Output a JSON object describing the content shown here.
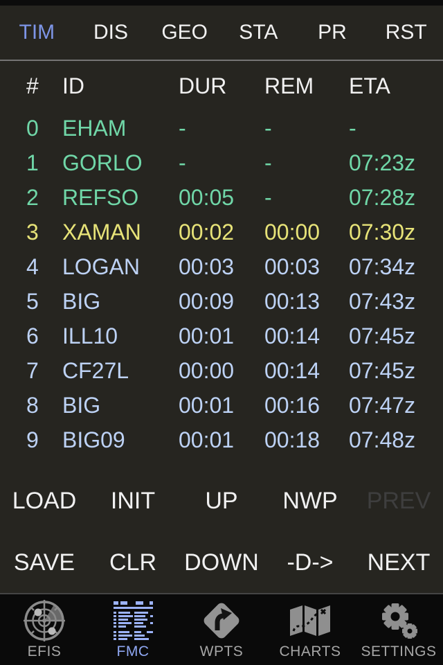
{
  "colors": {
    "bg": "#262520",
    "white": "#f1f1f1",
    "accent": "#7d95e6",
    "green": "#70d7a8",
    "yellow": "#e7e378",
    "blue_row": "#bdd2f5",
    "disabled": "#3e3e3e",
    "divider": "#757575",
    "tabbar_bg": "#0a0a0a",
    "tabbar_border": "#454545",
    "icon_gray": "#8f8f8f",
    "label_gray": "#a6a6a6",
    "fmc_blue": "#8fa7f2",
    "fmc_icon_blue": "#9cb2f8"
  },
  "top_tabs": {
    "items": [
      {
        "label": "TIM",
        "active": true
      },
      {
        "label": "DIS",
        "active": false
      },
      {
        "label": "GEO",
        "active": false
      },
      {
        "label": "STA",
        "active": false
      },
      {
        "label": "PR",
        "active": false
      },
      {
        "label": "RST",
        "active": false
      }
    ]
  },
  "table": {
    "headers": [
      "#",
      "ID",
      "DUR",
      "REM",
      "ETA"
    ],
    "rows": [
      {
        "num": "0",
        "id": "EHAM",
        "dur": "-",
        "rem": "-",
        "eta": "-",
        "color": "green"
      },
      {
        "num": "1",
        "id": "GORLO",
        "dur": "-",
        "rem": "-",
        "eta": "07:23z",
        "color": "green"
      },
      {
        "num": "2",
        "id": "REFSO",
        "dur": "00:05",
        "rem": "-",
        "eta": "07:28z",
        "color": "green"
      },
      {
        "num": "3",
        "id": "XAMAN",
        "dur": "00:02",
        "rem": "00:00",
        "eta": "07:30z",
        "color": "yellow"
      },
      {
        "num": "4",
        "id": "LOGAN",
        "dur": "00:03",
        "rem": "00:03",
        "eta": "07:34z",
        "color": "blue"
      },
      {
        "num": "5",
        "id": "BIG",
        "dur": "00:09",
        "rem": "00:13",
        "eta": "07:43z",
        "color": "blue"
      },
      {
        "num": "6",
        "id": "ILL10",
        "dur": "00:01",
        "rem": "00:14",
        "eta": "07:45z",
        "color": "blue"
      },
      {
        "num": "7",
        "id": "CF27L",
        "dur": "00:00",
        "rem": "00:14",
        "eta": "07:45z",
        "color": "blue"
      },
      {
        "num": "8",
        "id": "BIG",
        "dur": "00:01",
        "rem": "00:16",
        "eta": "07:47z",
        "color": "blue"
      },
      {
        "num": "9",
        "id": "BIG09",
        "dur": "00:01",
        "rem": "00:18",
        "eta": "07:48z",
        "color": "blue"
      }
    ]
  },
  "buttons": {
    "row1": [
      {
        "label": "LOAD",
        "name": "load-button",
        "disabled": false
      },
      {
        "label": "INIT",
        "name": "init-button",
        "disabled": false
      },
      {
        "label": "UP",
        "name": "up-button",
        "disabled": false
      },
      {
        "label": "NWP",
        "name": "nwp-button",
        "disabled": false
      },
      {
        "label": "PREV",
        "name": "prev-button",
        "disabled": true
      }
    ],
    "row2": [
      {
        "label": "SAVE",
        "name": "save-button",
        "disabled": false
      },
      {
        "label": "CLR",
        "name": "clr-button",
        "disabled": false
      },
      {
        "label": "DOWN",
        "name": "down-button",
        "disabled": false
      },
      {
        "label": "-D->",
        "name": "direct-to-button",
        "disabled": false
      },
      {
        "label": "NEXT",
        "name": "next-button",
        "disabled": false
      }
    ]
  },
  "tab_bar": {
    "items": [
      {
        "label": "EFIS",
        "icon": "radar-icon",
        "active": false
      },
      {
        "label": "FMC",
        "icon": "fmc-display-icon",
        "active": true
      },
      {
        "label": "WPTS",
        "icon": "turn-sign-icon",
        "active": false
      },
      {
        "label": "CHARTS",
        "icon": "map-icon",
        "active": false
      },
      {
        "label": "SETTINGS",
        "icon": "gears-icon",
        "active": false
      }
    ]
  }
}
